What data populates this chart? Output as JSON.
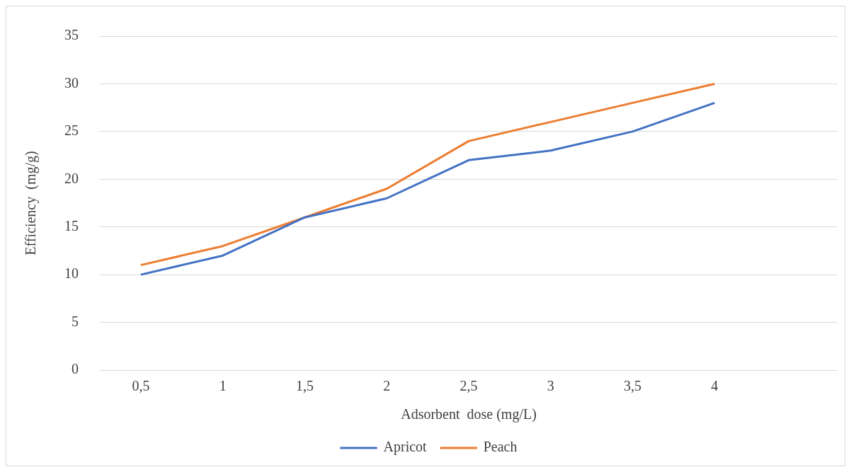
{
  "chart_data": {
    "type": "line",
    "xlabel": "Adsorbent  dose (mg/L)",
    "ylabel": "Efficiency  (mg/g)",
    "categories": [
      "0,5",
      "1",
      "1,5",
      "2",
      "2,5",
      "3",
      "3,5",
      "4",
      null
    ],
    "series": [
      {
        "name": "Apricot",
        "color": "#4472c4",
        "values": [
          10,
          12,
          16,
          18,
          22,
          23,
          25,
          28,
          null
        ]
      },
      {
        "name": "Peach",
        "color": "#ed7d31",
        "values": [
          11,
          13,
          16,
          19,
          24,
          26,
          28,
          30,
          null
        ]
      }
    ],
    "ylim": [
      0,
      35
    ],
    "yticks": [
      0,
      5,
      10,
      15,
      20,
      25,
      30,
      35
    ],
    "grid": "y",
    "legend": "bottom",
    "marker": "none",
    "line_style": "solid"
  }
}
